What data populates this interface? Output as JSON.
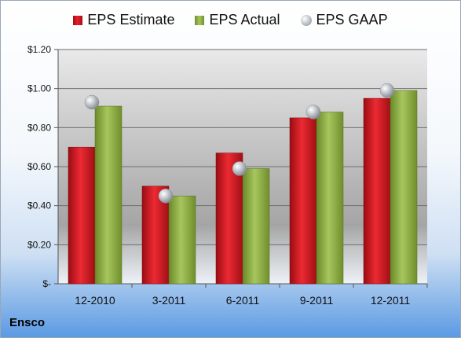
{
  "chart_data": {
    "type": "bar",
    "categories": [
      "12-2010",
      "3-2011",
      "6-2011",
      "9-2011",
      "12-2011"
    ],
    "series": [
      {
        "name": "EPS Estimate",
        "kind": "bar",
        "color": "#d42028",
        "values": [
          0.7,
          0.5,
          0.67,
          0.85,
          0.95
        ]
      },
      {
        "name": "EPS Actual",
        "kind": "bar",
        "color": "#8fb04a",
        "values": [
          0.91,
          0.45,
          0.59,
          0.88,
          0.99
        ]
      },
      {
        "name": "EPS GAAP",
        "kind": "marker",
        "color": "#b9bec4",
        "values": [
          0.93,
          0.45,
          0.59,
          0.88,
          0.99
        ]
      }
    ],
    "yticks": [
      "$-",
      "$0.20",
      "$0.40",
      "$0.60",
      "$0.80",
      "$1.00",
      "$1.20"
    ],
    "ylim": [
      0,
      1.2
    ],
    "grid": true,
    "legend_position": "top",
    "company": "Ensco"
  }
}
